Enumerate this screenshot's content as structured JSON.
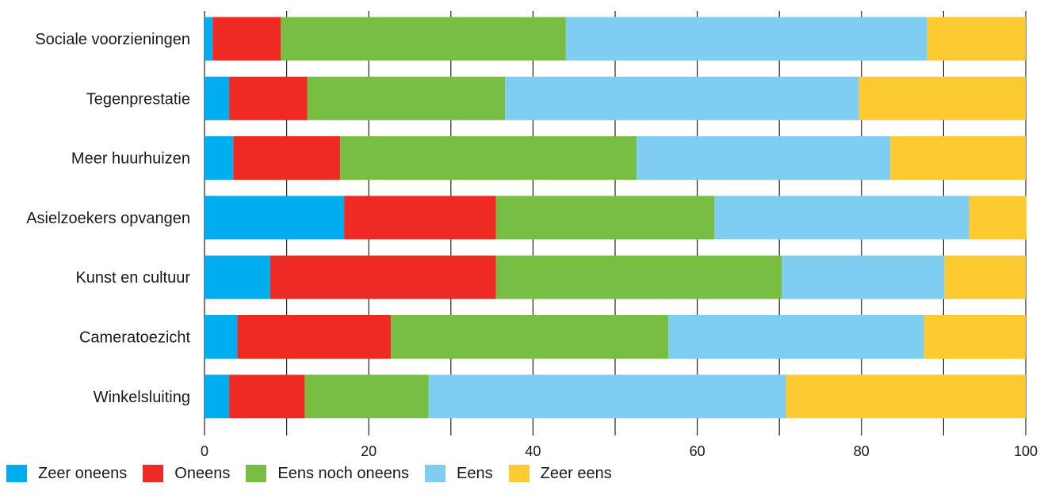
{
  "chart_data": {
    "type": "bar",
    "orientation": "horizontal",
    "stacked": true,
    "categories": [
      "Sociale voorzieningen",
      "Tegenprestatie",
      "Meer huurhuizen",
      "Asielzoekers opvangen",
      "Kunst en cultuur",
      "Cameratoezicht",
      "Winkelsluiting"
    ],
    "series": [
      {
        "name": "Zeer oneens",
        "color": "#00adef",
        "values": [
          1,
          3,
          3.5,
          17,
          8,
          4,
          3
        ]
      },
      {
        "name": "Oneens",
        "color": "#ef2a24",
        "values": [
          8.3,
          9.5,
          13,
          18.5,
          27.5,
          18.7,
          9.2
        ]
      },
      {
        "name": "Eens noch oneens",
        "color": "#77be43",
        "values": [
          34.7,
          24.1,
          36.1,
          26.6,
          34.8,
          33.8,
          15.1
        ]
      },
      {
        "name": "Eens",
        "color": "#7fcef2",
        "values": [
          44,
          43.1,
          30.9,
          31,
          19.8,
          31.1,
          43.5
        ]
      },
      {
        "name": "Zeer eens",
        "color": "#fdcb31",
        "values": [
          12,
          20.3,
          16.5,
          7,
          9.9,
          12.4,
          29.2
        ]
      }
    ],
    "xlim": [
      0,
      100
    ],
    "xticks": [
      "0",
      "20",
      "40",
      "60",
      "80",
      "100"
    ],
    "title": "",
    "xlabel": "",
    "ylabel": "",
    "grid": true,
    "legend_position": "bottom-left"
  }
}
